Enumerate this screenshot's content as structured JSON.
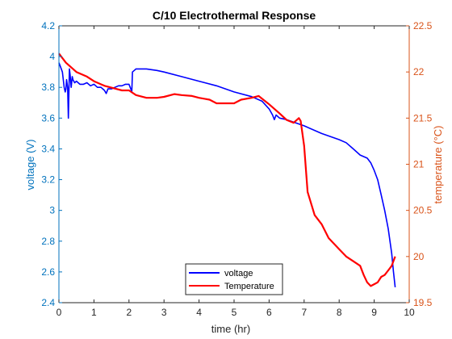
{
  "chart_data": {
    "type": "line",
    "title": "C/10 Electrothermal Response",
    "xlabel": "time (hr)",
    "ylabel_left": "voltage (V)",
    "ylabel_right": "temperature (°C)",
    "xlim": [
      0,
      10
    ],
    "ylim_left": [
      2.4,
      4.2
    ],
    "ylim_right": [
      19.5,
      22.5
    ],
    "x_ticks": [
      "0",
      "1",
      "2",
      "3",
      "4",
      "5",
      "6",
      "7",
      "8",
      "9",
      "10"
    ],
    "y_ticks_left": [
      "2.4",
      "2.6",
      "2.8",
      "3",
      "3.2",
      "3.4",
      "3.6",
      "3.8",
      "4",
      "4.2"
    ],
    "y_ticks_right": [
      "19.5",
      "20",
      "20.5",
      "21",
      "21.5",
      "22",
      "22.5"
    ],
    "grid": false,
    "legend_position": "bottom-center",
    "colors": {
      "voltage": "#0000FF",
      "temperature": "#FF0000",
      "left_axis": "#0072BD",
      "right_axis": "#D95319"
    },
    "series": [
      {
        "name": "voltage",
        "axis": "left",
        "x": [
          0,
          0.05,
          0.1,
          0.15,
          0.18,
          0.2,
          0.22,
          0.25,
          0.27,
          0.3,
          0.32,
          0.35,
          0.38,
          0.4,
          0.45,
          0.5,
          0.6,
          0.7,
          0.8,
          0.9,
          1.0,
          1.1,
          1.2,
          1.3,
          1.35,
          1.4,
          1.5,
          1.6,
          1.7,
          1.8,
          1.9,
          2.0,
          2.05,
          2.08,
          2.1,
          2.15,
          2.2,
          2.3,
          2.5,
          2.8,
          3.0,
          3.5,
          4.0,
          4.5,
          5.0,
          5.5,
          5.8,
          6.0,
          6.1,
          6.15,
          6.2,
          6.3,
          6.5,
          7.0,
          7.5,
          8.0,
          8.2,
          8.4,
          8.6,
          8.8,
          8.9,
          9.0,
          9.1,
          9.2,
          9.3,
          9.4,
          9.5,
          9.55,
          9.6
        ],
        "y": [
          3.96,
          3.93,
          3.9,
          3.8,
          3.77,
          3.79,
          3.85,
          3.8,
          3.6,
          3.92,
          3.88,
          3.8,
          3.87,
          3.85,
          3.83,
          3.84,
          3.82,
          3.82,
          3.83,
          3.81,
          3.82,
          3.8,
          3.8,
          3.78,
          3.76,
          3.79,
          3.79,
          3.8,
          3.81,
          3.81,
          3.82,
          3.82,
          3.79,
          3.77,
          3.9,
          3.91,
          3.92,
          3.92,
          3.92,
          3.91,
          3.9,
          3.87,
          3.84,
          3.81,
          3.77,
          3.74,
          3.71,
          3.66,
          3.62,
          3.59,
          3.62,
          3.6,
          3.59,
          3.55,
          3.5,
          3.46,
          3.44,
          3.4,
          3.36,
          3.34,
          3.31,
          3.26,
          3.2,
          3.1,
          3.0,
          2.88,
          2.72,
          2.6,
          2.5
        ]
      },
      {
        "name": "Temperature",
        "axis": "right",
        "x": [
          0,
          0.2,
          0.5,
          0.8,
          1.0,
          1.3,
          1.5,
          1.8,
          2.0,
          2.2,
          2.5,
          2.8,
          3.0,
          3.3,
          3.5,
          3.8,
          4.0,
          4.3,
          4.5,
          4.8,
          5.0,
          5.2,
          5.5,
          5.7,
          6.0,
          6.3,
          6.5,
          6.7,
          6.85,
          6.9,
          7.0,
          7.1,
          7.3,
          7.5,
          7.7,
          8.0,
          8.2,
          8.4,
          8.6,
          8.7,
          8.8,
          8.9,
          9.0,
          9.1,
          9.2,
          9.3,
          9.4,
          9.5,
          9.6
        ],
        "y": [
          22.2,
          22.1,
          22.0,
          21.95,
          21.9,
          21.85,
          21.83,
          21.8,
          21.8,
          21.75,
          21.72,
          21.72,
          21.73,
          21.76,
          21.75,
          21.74,
          21.72,
          21.7,
          21.66,
          21.66,
          21.66,
          21.7,
          21.72,
          21.74,
          21.65,
          21.55,
          21.48,
          21.45,
          21.5,
          21.47,
          21.2,
          20.7,
          20.45,
          20.35,
          20.2,
          20.08,
          20.0,
          19.95,
          19.9,
          19.8,
          19.72,
          19.68,
          19.7,
          19.72,
          19.78,
          19.8,
          19.85,
          19.9,
          20.0
        ]
      }
    ]
  }
}
